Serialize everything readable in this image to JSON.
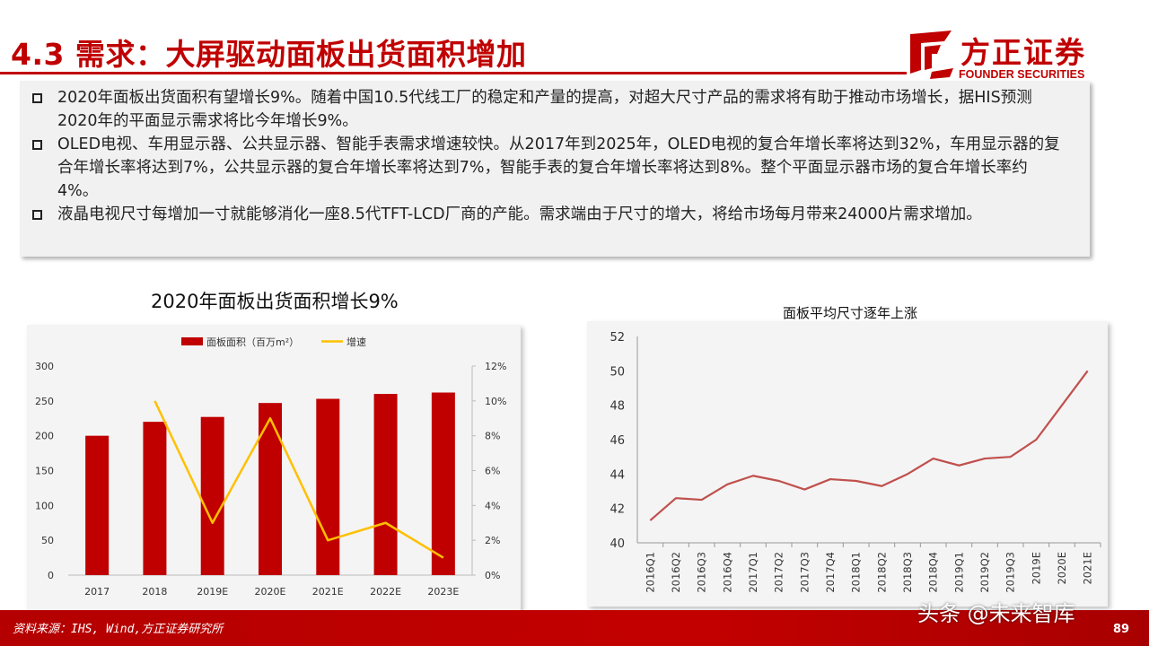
{
  "header": {
    "title": "4.3 需求：大屏驱动面板出货面积增加",
    "logo_name": "方正证券",
    "logo_sub": "FOUNDER SECURITIES",
    "brand_color": "#c00000"
  },
  "bullets": [
    "2020年面板出货面积有望增长9%。随着中国10.5代线工厂的稳定和产量的提高，对超大尺寸产品的需求将有助于推动市场增长，据HIS预测2020年的平面显示需求将比今年增长9%。",
    "OLED电视、车用显示器、公共显示器、智能手表需求增速较快。从2017年到2025年，OLED电视的复合年增长率将达到32%，车用显示器的复合年增长率将达到7%，公共显示器的复合年增长率将达到7%，智能手表的复合年增长率将达到8%。整个平面显示器市场的复合年增长率约4%。",
    "液晶电视尺寸每增加一寸就能够消化一座8.5代TFT-LCD厂商的产能。需求端由于尺寸的增大，将给市场每月带来24000片需求增加。"
  ],
  "bullet_icon": "square-bullet-icon",
  "chart_data": [
    {
      "type": "bar",
      "title": "2020年面板出货面积增长9%",
      "categories": [
        "2017",
        "2018",
        "2019E",
        "2020E",
        "2021E",
        "2022E",
        "2023E"
      ],
      "series": [
        {
          "name": "面板面积（百万m²）",
          "type": "bar",
          "axis": "left",
          "color": "#c00000",
          "values": [
            200,
            220,
            227,
            247,
            253,
            260,
            262
          ]
        },
        {
          "name": "增速",
          "type": "line",
          "axis": "right",
          "color": "#ffc000",
          "values": [
            null,
            10,
            3,
            9,
            2,
            3,
            1
          ]
        }
      ],
      "ylim": [
        0,
        300
      ],
      "yticks": [
        "0",
        "50",
        "100",
        "150",
        "200",
        "250",
        "300"
      ],
      "y2lim": [
        0,
        12
      ],
      "y2ticks": [
        "0%",
        "2%",
        "4%",
        "6%",
        "8%",
        "10%",
        "12%"
      ],
      "legend": "top",
      "grid": false
    },
    {
      "type": "line",
      "title": "面板平均尺寸逐年上涨",
      "categories": [
        "2016Q1",
        "2016Q2",
        "2016Q3",
        "2016Q4",
        "2017Q1",
        "2017Q2",
        "2017Q3",
        "2017Q4",
        "2018Q1",
        "2018Q2",
        "2018Q3",
        "2018Q4",
        "2019Q1",
        "2019Q2",
        "2019Q3",
        "2019E",
        "2020E",
        "2021E"
      ],
      "series": [
        {
          "color": "#c0504d",
          "values": [
            41.3,
            42.6,
            42.5,
            43.4,
            43.9,
            43.6,
            43.1,
            43.7,
            43.6,
            43.3,
            44.0,
            44.9,
            44.5,
            44.9,
            45.0,
            46.0,
            48.0,
            50.0
          ]
        }
      ],
      "ylim": [
        40,
        52
      ],
      "yticks": [
        "40",
        "42",
        "44",
        "46",
        "48",
        "50",
        "52"
      ],
      "grid": false
    }
  ],
  "footer": {
    "source": "资料来源：IHS, Wind,方正证券研究所",
    "watermark": "头条 @未来智库",
    "page_number": "89"
  }
}
